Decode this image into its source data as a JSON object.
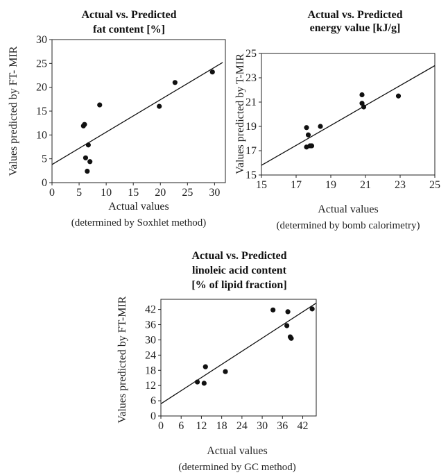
{
  "chart_data": [
    {
      "type": "scatter",
      "title_lines": [
        "Actual vs. Predicted",
        "fat content [%]"
      ],
      "xlabel": "Actual values",
      "xlabel_sub": "(determined by Soxhlet method)",
      "ylabel": "Values predicted by FT- MIR",
      "xlim": [
        0,
        32
      ],
      "ylim": [
        0,
        30
      ],
      "xticks": [
        0,
        5,
        10,
        15,
        20,
        25,
        30
      ],
      "yticks": [
        0,
        5,
        10,
        15,
        20,
        25,
        30
      ],
      "x": [
        5.8,
        6.0,
        6.2,
        6.5,
        6.7,
        7.0,
        8.8,
        19.8,
        22.7,
        29.6
      ],
      "y": [
        11.9,
        12.2,
        5.2,
        2.4,
        7.9,
        4.4,
        16.3,
        16.0,
        21.0,
        23.2
      ],
      "fit_line": [
        [
          0,
          3.8
        ],
        [
          31.5,
          25.2
        ]
      ]
    },
    {
      "type": "scatter",
      "title_lines": [
        "Actual vs. Predicted",
        "energy value [kJ/g]"
      ],
      "xlabel": "Actual values",
      "xlabel_sub": "(determined by bomb calorimetry)",
      "ylabel": "Values predicted by T-MIR",
      "xlim": [
        15,
        25
      ],
      "ylim": [
        15,
        25
      ],
      "xticks": [
        15,
        17,
        19,
        21,
        23,
        25
      ],
      "yticks": [
        15,
        17,
        19,
        21,
        23,
        25
      ],
      "x": [
        17.6,
        17.6,
        17.7,
        17.8,
        17.9,
        18.4,
        20.8,
        20.8,
        20.9,
        22.9
      ],
      "y": [
        18.9,
        17.3,
        18.3,
        17.4,
        17.4,
        19.0,
        21.6,
        20.9,
        20.6,
        21.5
      ],
      "fit_line": [
        [
          15,
          15.8
        ],
        [
          25,
          24.0
        ]
      ]
    },
    {
      "type": "scatter",
      "title_lines": [
        "Actual vs. Predicted",
        "linoleic acid content",
        "[% of lipid fraction]"
      ],
      "xlabel": "Actual values",
      "xlabel_sub": "(determined by GC method)",
      "ylabel": "Values predicted by FT-MIR",
      "xlim": [
        0,
        46
      ],
      "ylim": [
        0,
        46
      ],
      "xticks": [
        0,
        6,
        12,
        18,
        24,
        30,
        36,
        42
      ],
      "yticks": [
        0,
        6,
        12,
        18,
        24,
        30,
        36,
        42
      ],
      "x": [
        10.8,
        12.8,
        13.2,
        19.1,
        33.2,
        37.3,
        37.6,
        38.3,
        38.6,
        44.8
      ],
      "y": [
        13.4,
        12.9,
        19.4,
        17.5,
        41.8,
        35.6,
        41.1,
        31.2,
        30.6,
        42.2
      ],
      "fit_line": [
        [
          0,
          4.8
        ],
        [
          46,
          44.5
        ]
      ]
    }
  ]
}
